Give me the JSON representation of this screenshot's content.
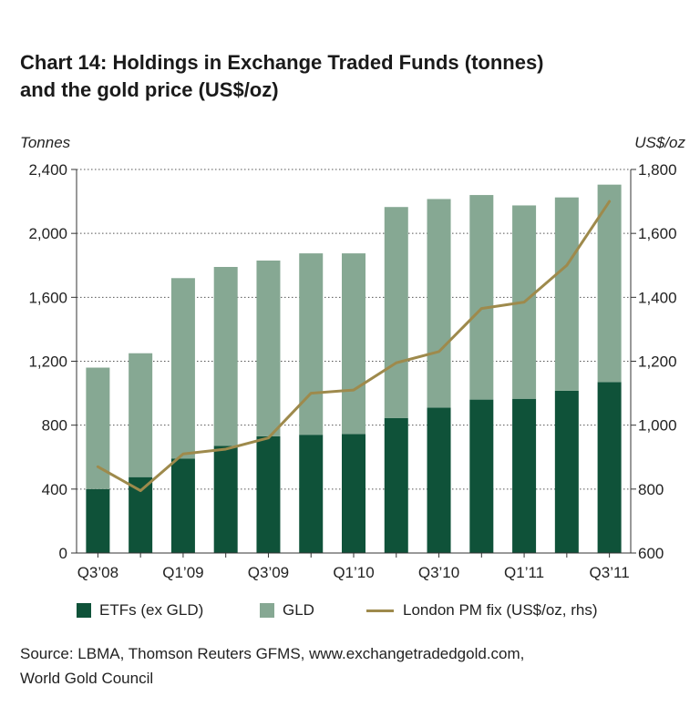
{
  "title": {
    "line1": "Chart 14: Holdings in Exchange Traded Funds (tonnes)",
    "line2": "and the gold price (US$/oz)"
  },
  "colors": {
    "etfs_ex_gld": "#0f5239",
    "gld": "#86a893",
    "gold_price": "#9e8a4c",
    "grid": "#555555"
  },
  "chart_data": {
    "type": "bar",
    "stacked": true,
    "categories": [
      "Q3'08",
      "Q4'08",
      "Q1'09",
      "Q2'09",
      "Q3'09",
      "Q4'09",
      "Q1'10",
      "Q2'10",
      "Q3'10",
      "Q4'10",
      "Q1'11",
      "Q2'11",
      "Q3'11"
    ],
    "x_tick_labels": [
      "Q3’08",
      "",
      "Q1’09",
      "",
      "Q3’09",
      "",
      "Q1’10",
      "",
      "Q3’10",
      "",
      "Q1’11",
      "",
      "Q3’11"
    ],
    "left_axis": {
      "label": "Tonnes",
      "ylim": [
        0,
        2400
      ],
      "ticks": [
        0,
        400,
        800,
        1200,
        1600,
        2000,
        2400
      ],
      "tick_labels": [
        "0",
        "400",
        "800",
        "1,200",
        "1,600",
        "2,000",
        "2,400"
      ]
    },
    "right_axis": {
      "label": "US$/oz",
      "ylim": [
        600,
        1800
      ],
      "ticks": [
        600,
        800,
        1000,
        1200,
        1400,
        1600,
        1800
      ],
      "tick_labels": [
        "600",
        "800",
        "1,000",
        "1,200",
        "1,400",
        "1,600",
        "1,800"
      ]
    },
    "grid": "dotted horizontal",
    "series": [
      {
        "name": "ETFs (ex GLD)",
        "kind": "bar",
        "axis": "left",
        "values": [
          400,
          475,
          590,
          670,
          730,
          740,
          745,
          845,
          910,
          960,
          965,
          1015,
          1070
        ]
      },
      {
        "name": "GLD",
        "kind": "bar",
        "axis": "left",
        "values": [
          760,
          775,
          1130,
          1120,
          1100,
          1135,
          1130,
          1320,
          1305,
          1280,
          1210,
          1210,
          1235
        ]
      },
      {
        "name": "London PM fix (US$/oz, rhs)",
        "kind": "line",
        "axis": "right",
        "values": [
          870,
          795,
          910,
          925,
          960,
          1100,
          1110,
          1195,
          1230,
          1365,
          1385,
          1500,
          1700
        ]
      }
    ],
    "legend_position": "bottom"
  },
  "source": {
    "line1": "Source: LBMA, Thomson Reuters GFMS, www.exchangetradedgold.com,",
    "line2": "World Gold Council"
  }
}
